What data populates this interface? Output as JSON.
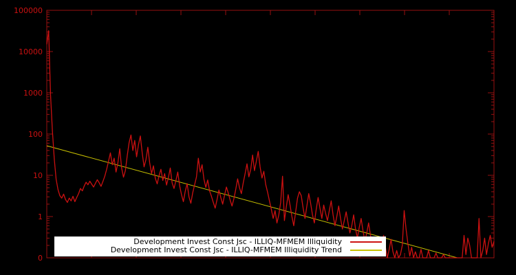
{
  "chart_data": {
    "type": "line",
    "title": "",
    "xlabel": "",
    "ylabel": "",
    "y_scale": "log",
    "ylim": [
      0.1,
      100000
    ],
    "x_range": [
      0,
      1
    ],
    "grid": false,
    "legend_position": "bottom-center",
    "background_color": "#000000",
    "axis_color": "#991111",
    "tick_label_color": "#cc1111",
    "y_ticks": [
      {
        "label": "100000",
        "value": 100000
      },
      {
        "label": "10000",
        "value": 10000
      },
      {
        "label": "1000",
        "value": 1000
      },
      {
        "label": "100",
        "value": 100
      },
      {
        "label": "10",
        "value": 10
      },
      {
        "label": "1",
        "value": 1
      },
      {
        "label": "0",
        "value": 0.1
      }
    ],
    "series": [
      {
        "name": "Development Invest Const Jsc - ILLIQ-MFMEM Illiquidity",
        "color": "#cc1111",
        "values": [
          15000,
          32000,
          900,
          120,
          25,
          8,
          4.5,
          3.2,
          2.8,
          3.5,
          2.6,
          2.2,
          2.8,
          2.4,
          3.1,
          2.3,
          2.9,
          3.6,
          4.8,
          4.2,
          5.5,
          6.8,
          5.9,
          7.2,
          6.1,
          5.2,
          6.4,
          7.8,
          6.6,
          5.4,
          7.1,
          9.5,
          14,
          22,
          35,
          18,
          26,
          12,
          20,
          44,
          15,
          9,
          13,
          30,
          62,
          95,
          40,
          70,
          28,
          55,
          90,
          35,
          16,
          24,
          48,
          20,
          11,
          17,
          8.5,
          6.2,
          9.8,
          14,
          7.5,
          11,
          5.8,
          8.8,
          15,
          6.5,
          4.8,
          7.4,
          12,
          5.6,
          3.4,
          2.3,
          4.1,
          6.3,
          3.0,
          2.1,
          3.8,
          5.9,
          9.1,
          26,
          12,
          18,
          8,
          5.1,
          7.7,
          4.2,
          3.1,
          2.2,
          1.6,
          2.6,
          4.4,
          2.9,
          2.0,
          3.3,
          5.2,
          3.7,
          2.5,
          1.8,
          2.7,
          4.6,
          8.2,
          5.0,
          3.6,
          6.6,
          11,
          19,
          9.2,
          14,
          31,
          13,
          22,
          38,
          16,
          8.6,
          12.5,
          6.0,
          3.9,
          2.4,
          1.5,
          0.9,
          1.4,
          0.7,
          1.1,
          2.2,
          9.5,
          0.8,
          1.7,
          3.4,
          1.9,
          1.0,
          0.6,
          1.3,
          2.8,
          4.0,
          3.2,
          1.6,
          0.9,
          1.8,
          3.6,
          2.1,
          1.1,
          0.7,
          1.5,
          2.9,
          1.6,
          0.9,
          1.9,
          1.2,
          0.8,
          1.4,
          2.4,
          1.1,
          0.6,
          1.0,
          1.8,
          0.9,
          0.5,
          0.8,
          1.3,
          0.7,
          0.4,
          0.6,
          1.1,
          0.5,
          0.3,
          0.55,
          0.9,
          0.45,
          0.25,
          0.4,
          0.7,
          0.35,
          0.2,
          0.3,
          0.15,
          0.25,
          0.12,
          0.2,
          0.35,
          0.18,
          0.1,
          0.16,
          0.28,
          0.14,
          0.09,
          0.15,
          0.07,
          0.12,
          0.2,
          1.4,
          0.5,
          0.22,
          0.11,
          0.18,
          0.09,
          0.14,
          0.06,
          0.1,
          0.16,
          0.08,
          0.05,
          0.09,
          0.15,
          0.07,
          0.04,
          0.08,
          0.13,
          0.06,
          0.04,
          0.07,
          0.12,
          0.05,
          0.03,
          0.06,
          0.1,
          0.05,
          0.03,
          0.05,
          0.09,
          0.04,
          0.06,
          0.35,
          0.12,
          0.3,
          0.2,
          0.08,
          0.04,
          0.06,
          0.1,
          0.9,
          0.08,
          0.15,
          0.3,
          0.12,
          0.22,
          0.35,
          0.18,
          0.25
        ]
      },
      {
        "name": "Development Invest Const Jsc - ILLIQ-MFMEM Illiquidity Trend",
        "color": "#c8c000",
        "x": [
          0,
          0.918
        ],
        "values": [
          52,
          0.1
        ]
      }
    ]
  },
  "legend": {
    "entries": [
      {
        "label": "Development Invest Const Jsc - ILLIQ-MFMEM Illiquidity"
      },
      {
        "label": "Development Invest Const Jsc - ILLIQ-MFMEM Illiquidity Trend"
      }
    ]
  }
}
